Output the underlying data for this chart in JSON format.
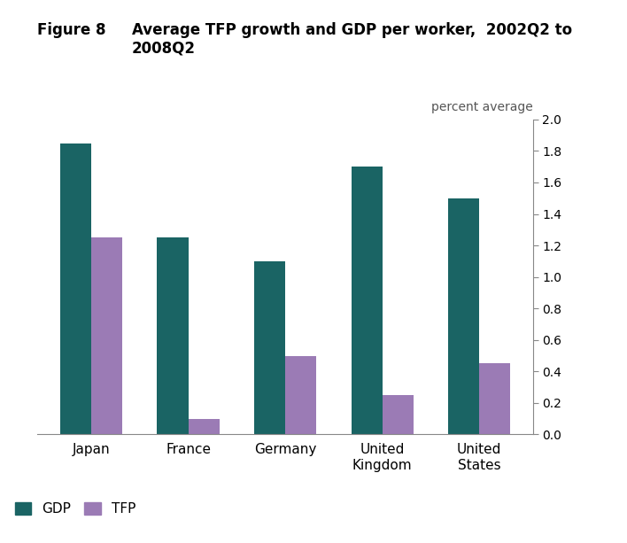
{
  "categories": [
    "Japan",
    "France",
    "Germany",
    "United\nKingdom",
    "United\nStates"
  ],
  "gdp_values": [
    1.85,
    1.25,
    1.1,
    1.7,
    1.5
  ],
  "tfp_values": [
    1.25,
    0.1,
    0.5,
    0.25,
    0.45
  ],
  "gdp_color": "#1a6464",
  "tfp_color": "#9b7bb5",
  "ylabel_text": "percent average",
  "ylim": [
    0,
    2.0
  ],
  "yticks": [
    0,
    0.2,
    0.4,
    0.6,
    0.8,
    1.0,
    1.2,
    1.4,
    1.6,
    1.8,
    2.0
  ],
  "legend_gdp": "GDP",
  "legend_tfp": "TFP",
  "background_color": "#ffffff",
  "bar_width": 0.32,
  "figure_8_text": "Figure 8",
  "title_text": "Average TFP growth and GDP per worker,  2002Q2 to\n2008Q2"
}
